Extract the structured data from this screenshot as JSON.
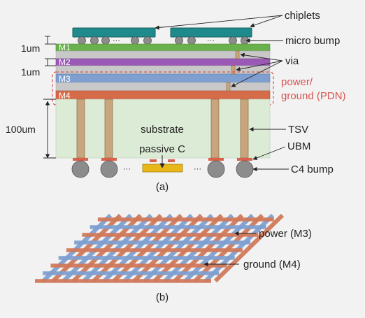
{
  "colors": {
    "background": "#f2f2f2",
    "chiplet": "#1f8a8c",
    "bump": "#8c8c8c",
    "m1": "#6ab04c",
    "m2": "#9b59b6",
    "m3": "#7e9fd0",
    "m4": "#d66b4a",
    "dielectric": "#c8c8c8",
    "via": "#c9a57e",
    "substrate": "#dcebd5",
    "capacitor": "#e8b81a",
    "ubm": "#d9614a",
    "pdn_box": "#d9534f",
    "pdn_text": "#d9534f",
    "grid_power": "#7e9fd0",
    "grid_ground": "#d0785a"
  },
  "labels": {
    "chiplets": "chiplets",
    "micro_bump": "micro bump",
    "via": "via",
    "pdn": [
      "power/",
      "ground (PDN)"
    ],
    "tsv": "TSV",
    "ubm": "UBM",
    "c4_bump": "C4 bump",
    "substrate": "substrate",
    "passive_c": "passive C",
    "ellipsis": "···",
    "dim_1um_a": "1um",
    "dim_1um_b": "1um",
    "dim_100um": "100um",
    "m1": "M1",
    "m2": "M2",
    "m3": "M3",
    "m4": "M4",
    "caption_a": "(a)",
    "power_m3": "power (M3)",
    "ground_m4": "ground (M4)",
    "caption_b": "(b)"
  }
}
